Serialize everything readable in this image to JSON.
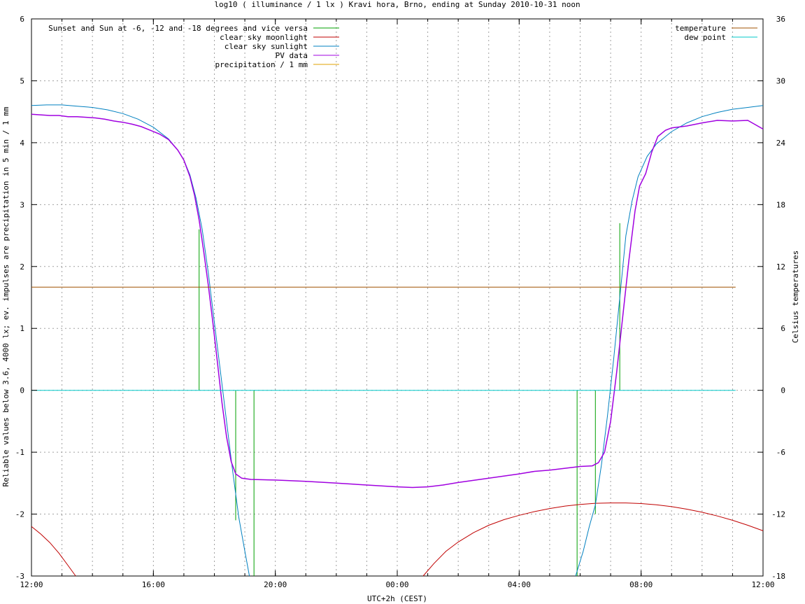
{
  "chart_data": {
    "type": "line",
    "title": "log10 ( illuminance / 1 lx ) Kravi hora, Brno, ending at Sunday 2010-10-31 noon",
    "xlabel": "UTC+2h (CEST)",
    "ylabel": "Reliable values below 3.6, 4000 lx; ev. impulses are precipitation in 5 min / 1 mm",
    "y2label": "Celsius temperatures",
    "x_range_hours": [
      0,
      24
    ],
    "ylim": [
      -3,
      6
    ],
    "y2lim": [
      -18,
      36
    ],
    "grid": true,
    "x_ticks": [
      {
        "h": 0,
        "label": "12:00"
      },
      {
        "h": 4,
        "label": "16:00"
      },
      {
        "h": 8,
        "label": "20:00"
      },
      {
        "h": 12,
        "label": "00:00"
      },
      {
        "h": 16,
        "label": "04:00"
      },
      {
        "h": 20,
        "label": "08:00"
      },
      {
        "h": 24,
        "label": "12:00"
      }
    ],
    "y_ticks": [
      {
        "v": -3,
        "label": "-3"
      },
      {
        "v": -2,
        "label": "-2"
      },
      {
        "v": -1,
        "label": "-1"
      },
      {
        "v": 0,
        "label": "0"
      },
      {
        "v": 1,
        "label": "1"
      },
      {
        "v": 2,
        "label": "2"
      },
      {
        "v": 3,
        "label": "3"
      },
      {
        "v": 4,
        "label": "4"
      },
      {
        "v": 5,
        "label": "5"
      },
      {
        "v": 6,
        "label": "6"
      }
    ],
    "y2_ticks": [
      {
        "v": -18,
        "label": "-18"
      },
      {
        "v": -12,
        "label": "-12"
      },
      {
        "v": -6,
        "label": "-6"
      },
      {
        "v": 0,
        "label": "0"
      },
      {
        "v": 6,
        "label": "6"
      },
      {
        "v": 12,
        "label": "12"
      },
      {
        "v": 18,
        "label": "18"
      },
      {
        "v": 24,
        "label": "24"
      },
      {
        "v": 30,
        "label": "30"
      },
      {
        "v": 36,
        "label": "36"
      }
    ],
    "legend_left": [
      {
        "label": "Sunset and Sun at -6, -12 and -18 degrees and vice versa",
        "color": "#00a000"
      },
      {
        "label": "clear sky moonlight",
        "color": "#c00000"
      },
      {
        "label": "clear sky sunlight",
        "color": "#0080c0"
      },
      {
        "label": "PV data",
        "color": "#a000e0"
      },
      {
        "label": "precipitation / 1 mm",
        "color": "#e0a000"
      }
    ],
    "legend_right": [
      {
        "label": "temperature",
        "color": "#a05000"
      },
      {
        "label": "dew point",
        "color": "#00c8c8"
      }
    ],
    "series": [
      {
        "name": "Sunset and Sun at -6, -12 and -18 degrees and vice versa",
        "color": "#00a000",
        "type": "impulse",
        "impulses": [
          {
            "x": 5.5,
            "y": 2.6
          },
          {
            "x": 6.7,
            "y": -2.1
          },
          {
            "x": 7.3,
            "y": -3.0
          },
          {
            "x": 17.9,
            "y": -3.0
          },
          {
            "x": 18.5,
            "y": -2.0
          },
          {
            "x": 19.3,
            "y": 2.7
          }
        ]
      },
      {
        "name": "clear sky moonlight",
        "color": "#c00000",
        "points": [
          [
            0,
            -2.2
          ],
          [
            0.3,
            -2.32
          ],
          [
            0.6,
            -2.46
          ],
          [
            0.9,
            -2.63
          ],
          [
            1.2,
            -2.83
          ],
          [
            1.45,
            -3.0
          ]
        ],
        "points2": [
          [
            12.85,
            -3.0
          ],
          [
            13.2,
            -2.8
          ],
          [
            13.6,
            -2.6
          ],
          [
            14,
            -2.45
          ],
          [
            14.5,
            -2.3
          ],
          [
            15,
            -2.18
          ],
          [
            15.5,
            -2.09
          ],
          [
            16,
            -2.02
          ],
          [
            16.5,
            -1.96
          ],
          [
            17,
            -1.91
          ],
          [
            17.5,
            -1.87
          ],
          [
            18,
            -1.845
          ],
          [
            18.5,
            -1.825
          ],
          [
            19,
            -1.82
          ],
          [
            19.5,
            -1.82
          ],
          [
            20,
            -1.83
          ],
          [
            20.5,
            -1.85
          ],
          [
            21,
            -1.88
          ],
          [
            21.5,
            -1.92
          ],
          [
            22,
            -1.97
          ],
          [
            22.5,
            -2.03
          ],
          [
            23,
            -2.1
          ],
          [
            23.5,
            -2.18
          ],
          [
            24,
            -2.27
          ]
        ]
      },
      {
        "name": "clear sky sunlight",
        "color": "#0080c0",
        "points": [
          [
            0,
            4.6
          ],
          [
            0.5,
            4.61
          ],
          [
            1,
            4.61
          ],
          [
            1.5,
            4.59
          ],
          [
            2,
            4.57
          ],
          [
            2.5,
            4.53
          ],
          [
            3,
            4.47
          ],
          [
            3.5,
            4.38
          ],
          [
            4,
            4.25
          ],
          [
            4.5,
            4.06
          ],
          [
            4.8,
            3.88
          ],
          [
            5,
            3.72
          ],
          [
            5.2,
            3.48
          ],
          [
            5.4,
            3.1
          ],
          [
            5.6,
            2.6
          ],
          [
            5.8,
            1.9
          ],
          [
            6.0,
            1.1
          ],
          [
            6.2,
            0.3
          ],
          [
            6.4,
            -0.5
          ],
          [
            6.6,
            -1.3
          ],
          [
            6.8,
            -2.05
          ],
          [
            7.0,
            -2.6
          ],
          [
            7.15,
            -3.0
          ]
        ],
        "points2": [
          [
            17.85,
            -3.0
          ],
          [
            18.1,
            -2.6
          ],
          [
            18.3,
            -2.2
          ],
          [
            18.5,
            -1.85
          ],
          [
            18.7,
            -1.2
          ],
          [
            18.9,
            -0.4
          ],
          [
            19.1,
            0.5
          ],
          [
            19.3,
            1.5
          ],
          [
            19.5,
            2.5
          ],
          [
            19.7,
            3.05
          ],
          [
            19.9,
            3.45
          ],
          [
            20.2,
            3.78
          ],
          [
            20.5,
            3.98
          ],
          [
            21,
            4.18
          ],
          [
            21.5,
            4.32
          ],
          [
            22,
            4.42
          ],
          [
            22.5,
            4.49
          ],
          [
            23,
            4.54
          ],
          [
            23.5,
            4.57
          ],
          [
            24,
            4.6
          ]
        ]
      },
      {
        "name": "PV data",
        "color": "#a000e0",
        "points": [
          [
            0,
            4.46
          ],
          [
            0.3,
            4.45
          ],
          [
            0.6,
            4.44
          ],
          [
            0.9,
            4.44
          ],
          [
            1.2,
            4.42
          ],
          [
            1.5,
            4.42
          ],
          [
            1.8,
            4.41
          ],
          [
            2.1,
            4.4
          ],
          [
            2.4,
            4.38
          ],
          [
            2.7,
            4.35
          ],
          [
            3.0,
            4.33
          ],
          [
            3.3,
            4.3
          ],
          [
            3.6,
            4.26
          ],
          [
            3.9,
            4.2
          ],
          [
            4.2,
            4.14
          ],
          [
            4.5,
            4.05
          ],
          [
            4.8,
            3.88
          ],
          [
            5.0,
            3.72
          ],
          [
            5.2,
            3.45
          ],
          [
            5.35,
            3.15
          ],
          [
            5.5,
            2.75
          ],
          [
            5.65,
            2.25
          ],
          [
            5.8,
            1.7
          ],
          [
            5.95,
            1.1
          ],
          [
            6.1,
            0.45
          ],
          [
            6.25,
            -0.2
          ],
          [
            6.4,
            -0.75
          ],
          [
            6.55,
            -1.15
          ],
          [
            6.7,
            -1.35
          ],
          [
            6.9,
            -1.42
          ],
          [
            7.2,
            -1.44
          ],
          [
            8,
            -1.45
          ],
          [
            9,
            -1.47
          ],
          [
            10,
            -1.5
          ],
          [
            11,
            -1.53
          ],
          [
            12,
            -1.56
          ],
          [
            12.5,
            -1.57
          ],
          [
            13,
            -1.56
          ],
          [
            13.5,
            -1.53
          ],
          [
            14,
            -1.49
          ],
          [
            15,
            -1.42
          ],
          [
            16,
            -1.35
          ],
          [
            16.5,
            -1.31
          ],
          [
            17,
            -1.29
          ],
          [
            17.5,
            -1.26
          ],
          [
            18,
            -1.23
          ],
          [
            18.4,
            -1.22
          ],
          [
            18.6,
            -1.17
          ],
          [
            18.8,
            -1.0
          ],
          [
            19.0,
            -0.5
          ],
          [
            19.2,
            0.3
          ],
          [
            19.4,
            1.2
          ],
          [
            19.6,
            2.1
          ],
          [
            19.8,
            2.9
          ],
          [
            19.95,
            3.3
          ],
          [
            20.15,
            3.5
          ],
          [
            20.35,
            3.85
          ],
          [
            20.55,
            4.1
          ],
          [
            20.8,
            4.2
          ],
          [
            21,
            4.24
          ],
          [
            21.5,
            4.27
          ],
          [
            22,
            4.32
          ],
          [
            22.5,
            4.36
          ],
          [
            23,
            4.35
          ],
          [
            23.5,
            4.36
          ],
          [
            24,
            4.22
          ]
        ]
      },
      {
        "name": "precipitation / 1 mm",
        "color": "#e0a000",
        "points": []
      },
      {
        "name": "temperature",
        "color": "#a05000",
        "axis": "y2",
        "points": [
          [
            0,
            10.0
          ],
          [
            23.1,
            10.0
          ]
        ]
      },
      {
        "name": "dew point",
        "color": "#00c8c8",
        "axis": "y2",
        "points": [
          [
            0,
            0.0
          ],
          [
            23.1,
            0.0
          ]
        ]
      }
    ]
  }
}
